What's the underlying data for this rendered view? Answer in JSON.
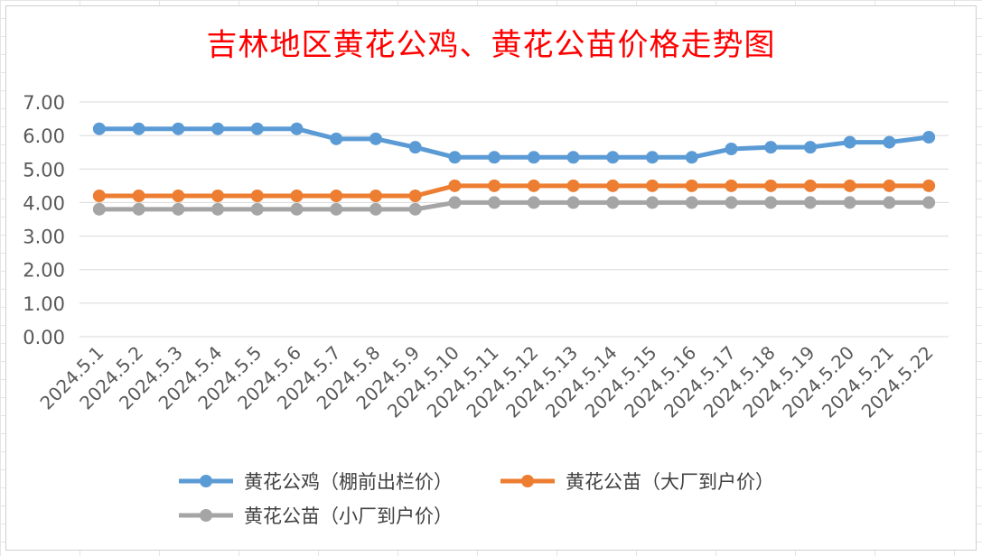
{
  "chart_data": {
    "type": "line",
    "title": "吉林地区黄花公鸡、黄花公苗价格走势图",
    "categories": [
      "2024.5.1",
      "2024.5.2",
      "2024.5.3",
      "2024.5.4",
      "2024.5.5",
      "2024.5.6",
      "2024.5.7",
      "2024.5.8",
      "2024.5.9",
      "2024.5.10",
      "2024.5.11",
      "2024.5.12",
      "2024.5.13",
      "2024.5.14",
      "2024.5.15",
      "2024.5.16",
      "2024.5.17",
      "2024.5.18",
      "2024.5.19",
      "2024.5.20",
      "2024.5.21",
      "2024.5.22"
    ],
    "y_ticks": [
      "0.00",
      "1.00",
      "2.00",
      "3.00",
      "4.00",
      "5.00",
      "6.00",
      "7.00"
    ],
    "ylim": [
      0,
      7
    ],
    "grid": true,
    "legend_position": "bottom",
    "series": [
      {
        "name": "黄花公鸡（棚前出栏价）",
        "color": "#5b9bd5",
        "values": [
          6.2,
          6.2,
          6.2,
          6.2,
          6.2,
          6.2,
          5.9,
          5.9,
          5.65,
          5.35,
          5.35,
          5.35,
          5.35,
          5.35,
          5.35,
          5.35,
          5.6,
          5.65,
          5.65,
          5.8,
          5.8,
          5.95
        ]
      },
      {
        "name": "黄花公苗（大厂到户价）",
        "color": "#ed7d31",
        "values": [
          4.2,
          4.2,
          4.2,
          4.2,
          4.2,
          4.2,
          4.2,
          4.2,
          4.2,
          4.5,
          4.5,
          4.5,
          4.5,
          4.5,
          4.5,
          4.5,
          4.5,
          4.5,
          4.5,
          4.5,
          4.5,
          4.5
        ]
      },
      {
        "name": "黄花公苗（小厂到户价）",
        "color": "#a5a5a5",
        "values": [
          3.8,
          3.8,
          3.8,
          3.8,
          3.8,
          3.8,
          3.8,
          3.8,
          3.8,
          4.0,
          4.0,
          4.0,
          4.0,
          4.0,
          4.0,
          4.0,
          4.0,
          4.0,
          4.0,
          4.0,
          4.0,
          4.0
        ]
      }
    ]
  }
}
